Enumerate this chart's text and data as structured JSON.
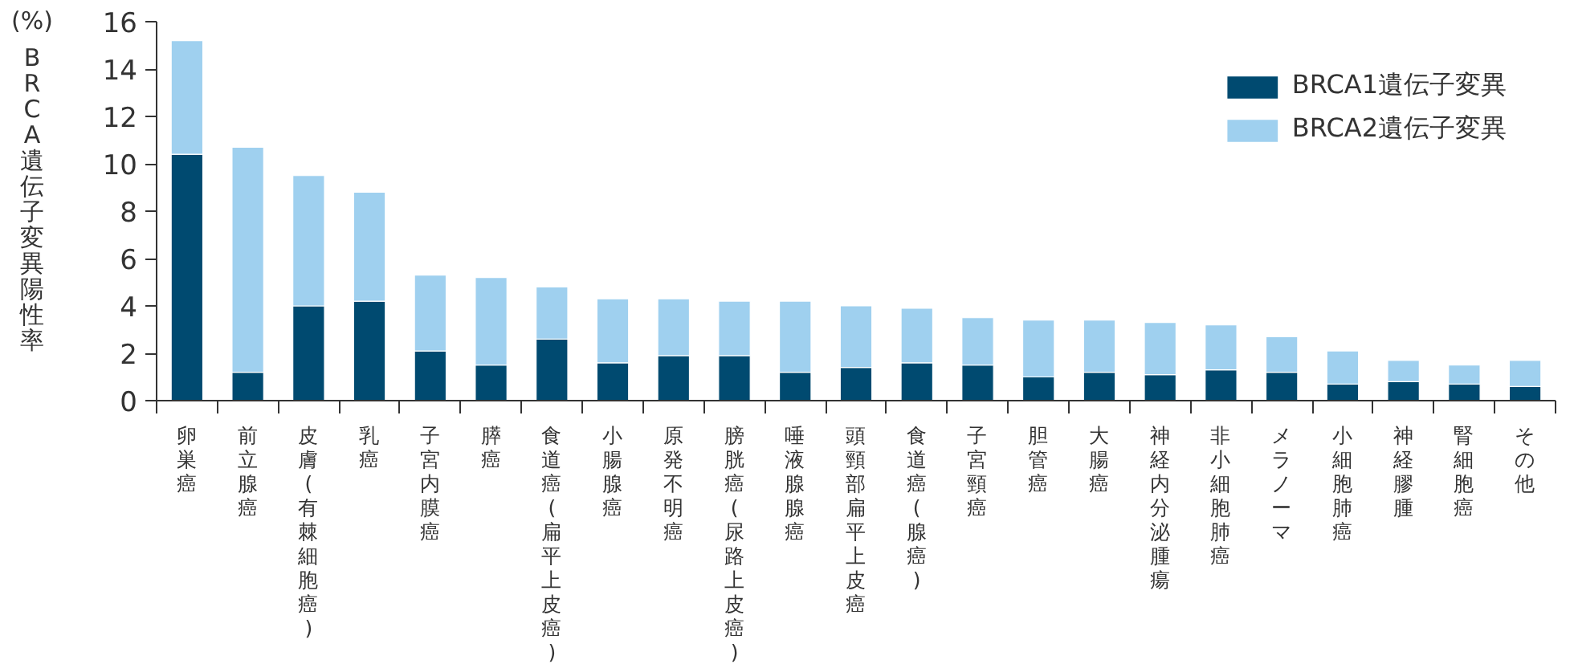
{
  "chart_data": {
    "type": "bar",
    "stacked": true,
    "ylabel": "BRCA遺伝子変異陽性率",
    "annotations": [
      "(%)"
    ],
    "categories": [
      "卵巣癌",
      "前立腺癌",
      "皮膚(有棘細胞癌)",
      "乳癌",
      "子宮内膜癌",
      "膵癌",
      "食道癌(扁平上皮癌)",
      "小腸腺癌",
      "原発不明癌",
      "膀胱癌(尿路上皮癌)",
      "唾液腺腺癌",
      "頭頸部扁平上皮癌",
      "食道癌(腺癌)",
      "子宮頸癌",
      "胆管癌",
      "大腸癌",
      "神経内分泌腫瘍",
      "非小細胞肺癌",
      "メラノーマ",
      "小細胞肺癌",
      "神経膠腫",
      "腎細胞癌",
      "その他"
    ],
    "series": [
      {
        "name": "BRCA1遺伝子変異",
        "color": "#004a70",
        "values": [
          10.4,
          1.2,
          4.0,
          4.2,
          2.1,
          1.5,
          2.6,
          1.6,
          1.9,
          1.9,
          1.2,
          1.4,
          1.6,
          1.5,
          1.0,
          1.2,
          1.1,
          1.3,
          1.2,
          0.7,
          0.8,
          0.7,
          0.6
        ]
      },
      {
        "name": "BRCA2遺伝子変異",
        "color": "#9fd0ef",
        "values": [
          4.8,
          9.5,
          5.5,
          4.6,
          3.2,
          3.7,
          2.2,
          2.7,
          2.4,
          2.3,
          3.0,
          2.6,
          2.3,
          2.0,
          2.4,
          2.2,
          2.2,
          1.9,
          1.5,
          1.4,
          0.9,
          0.8,
          1.1
        ]
      }
    ],
    "ylim": [
      0,
      16
    ],
    "yticks": [
      0,
      2,
      4,
      6,
      8,
      10,
      12,
      14,
      16
    ],
    "grid": false,
    "legend": "top right"
  }
}
